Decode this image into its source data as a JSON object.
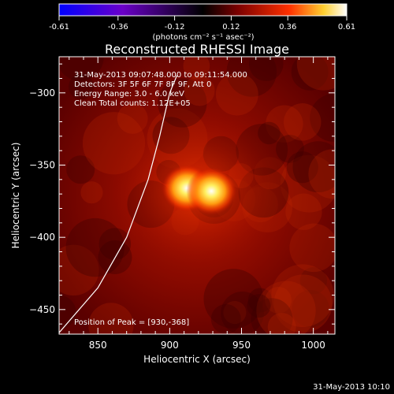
{
  "chart_data": {
    "type": "heatmap",
    "title": "Reconstructed RHESSI Image",
    "xlabel": "Heliocentric X (arcsec)",
    "ylabel": "Heliocentric Y (arcsec)",
    "xlim": [
      823,
      1015
    ],
    "ylim": [
      -467,
      -275
    ],
    "x_ticks": [
      850,
      900,
      950,
      1000
    ],
    "y_ticks": [
      -300,
      -350,
      -400,
      -450
    ],
    "colorbar": {
      "range": [
        -0.61,
        0.61
      ],
      "ticks": [
        "-0.61",
        "-0.36",
        "-0.12",
        "0.12",
        "0.36",
        "0.61"
      ],
      "ticks_values": [
        -0.61,
        -0.36,
        -0.12,
        0.12,
        0.36,
        0.61
      ],
      "unit_label": "(photons cm⁻² s⁻¹ asec⁻²)",
      "colors": [
        "#0000ff",
        "#6a00c8",
        "#000000",
        "#7a0000",
        "#ff3000",
        "#ffd030",
        "#ffffff"
      ]
    },
    "annotations": [
      "31-May-2013 09:07:48.000 to 09:11:54.000",
      "Detectors: 3F 5F 6F 7F 8F 9F, Att 0",
      "Energy Range: 3.0 - 6.0 keV",
      "Clean    Total counts: 1.12E+05"
    ],
    "peak_text": "Position of Peak = [930,-368]",
    "peak": [
      930,
      -368
    ],
    "sources": [
      {
        "x": 912,
        "y": -366,
        "amplitude": 0.55
      },
      {
        "x": 929,
        "y": -368,
        "amplitude": 0.58
      }
    ],
    "limb_curve": [
      [
        823,
        -466
      ],
      [
        850,
        -435
      ],
      [
        870,
        -400
      ],
      [
        885,
        -360
      ],
      [
        893,
        -330
      ],
      [
        900,
        -300
      ],
      [
        905,
        -288
      ]
    ],
    "timestamp": "31-May-2013 10:10"
  }
}
